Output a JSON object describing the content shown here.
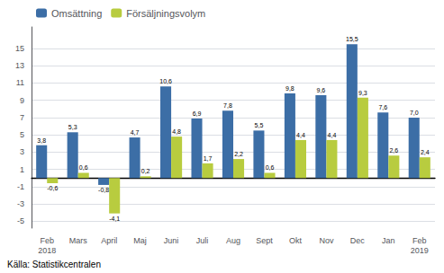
{
  "chart_data": {
    "type": "bar",
    "categories": [
      "Feb\n2018",
      "Mars",
      "April",
      "Maj",
      "Juni",
      "Juli",
      "Aug",
      "Sept",
      "Okt",
      "Nov",
      "Dec",
      "Jan",
      "Feb\n2019"
    ],
    "series": [
      {
        "name": "Omsättning",
        "color": "#3C6EA6",
        "values": [
          3.8,
          5.3,
          -0.8,
          4.7,
          10.6,
          6.9,
          7.8,
          5.5,
          9.8,
          9.6,
          15.5,
          7.6,
          7.0
        ],
        "value_labels": [
          "3,8",
          "5,3",
          "-0,8",
          "4,7",
          "10,6",
          "6,9",
          "7,8",
          "5,5",
          "9,8",
          "9,6",
          "15,5",
          "7,6",
          "7,0"
        ]
      },
      {
        "name": "Försäljningsvolym",
        "color": "#B8CC3F",
        "values": [
          -0.6,
          0.6,
          -4.1,
          0.2,
          4.8,
          1.7,
          2.2,
          0.6,
          4.4,
          4.4,
          9.3,
          2.6,
          2.4
        ],
        "value_labels": [
          "-0,6",
          "0,6",
          "-4,1",
          "0,2",
          "4,8",
          "1,7",
          "2,2",
          "0,6",
          "4,4",
          "4,4",
          "9,3",
          "2,6",
          "2,4"
        ]
      }
    ],
    "ylim": [
      -5.8,
      17.5
    ],
    "yticks": [
      -5,
      -3,
      -1,
      1,
      3,
      5,
      7,
      9,
      11,
      13,
      15
    ],
    "grid": true,
    "legend": "upper left",
    "data_labels": true,
    "source": "Källa: Statistikcentralen"
  }
}
